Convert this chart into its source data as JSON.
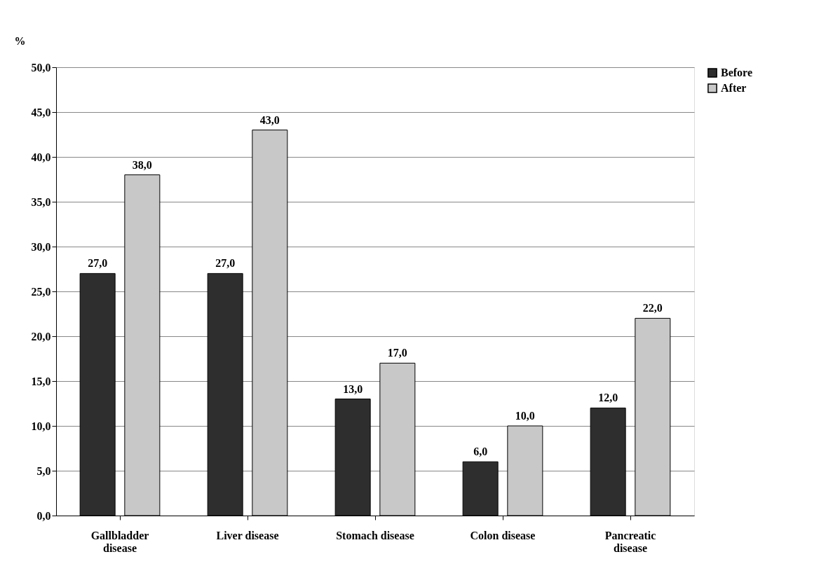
{
  "chart_data": {
    "type": "bar",
    "ylabel": "%",
    "categories": [
      "Gallbladder disease",
      "Liver disease",
      "Stomach disease",
      "Colon disease",
      "Pancreatic disease"
    ],
    "series": [
      {
        "name": "Before",
        "color": "#2e2e2e",
        "values": [
          27,
          27,
          13,
          6,
          12
        ],
        "value_labels": [
          "27,0",
          "27,0",
          "13,0",
          "6,0",
          "12,0"
        ]
      },
      {
        "name": "After",
        "color": "#c8c8c8",
        "values": [
          38,
          43,
          17,
          10,
          22
        ],
        "value_labels": [
          "38,0",
          "43,0",
          "17,0",
          "10,0",
          "22,0"
        ]
      }
    ],
    "ylim": [
      0,
      50
    ],
    "yticks": [
      {
        "value": 0,
        "label": "0,0"
      },
      {
        "value": 5,
        "label": "5,0"
      },
      {
        "value": 10,
        "label": "10,0"
      },
      {
        "value": 15,
        "label": "15,0"
      },
      {
        "value": 20,
        "label": "20,0"
      },
      {
        "value": 25,
        "label": "25,0"
      },
      {
        "value": 30,
        "label": "30,0"
      },
      {
        "value": 35,
        "label": "35,0"
      },
      {
        "value": 40,
        "label": "40,0"
      },
      {
        "value": 45,
        "label": "45,0"
      },
      {
        "value": 50,
        "label": "50,0"
      }
    ],
    "grid": "y",
    "legend": "right"
  }
}
